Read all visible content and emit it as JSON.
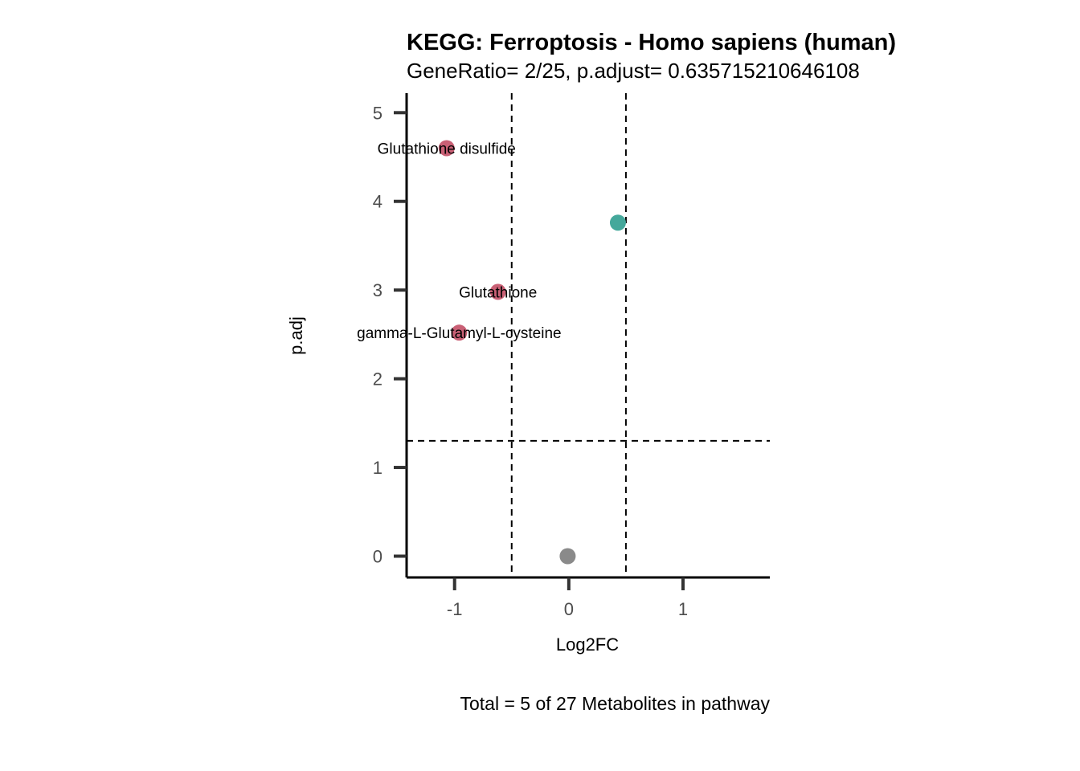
{
  "chart_data": {
    "type": "scatter",
    "title": "KEGG: Ferroptosis - Homo sapiens (human)",
    "subtitle": "GeneRatio= 2/25, p.adjust= 0.635715210646108",
    "xlabel": "Log2FC",
    "ylabel": "p.adj",
    "caption": "Total = 5 of 27 Metabolites in pathway",
    "xlim": [
      -1.42,
      1.76
    ],
    "ylim": [
      -0.24,
      5.22
    ],
    "x_ticks": [
      -1,
      0,
      1
    ],
    "x_tick_labels": [
      "-1",
      "0",
      "1"
    ],
    "y_ticks": [
      0,
      1,
      2,
      3,
      4,
      5
    ],
    "y_tick_labels": [
      "0",
      "1",
      "2",
      "3",
      "4",
      "5"
    ],
    "vlines": [
      -0.5,
      0.5
    ],
    "hline": 1.3,
    "grid": false,
    "points": [
      {
        "x": -1.07,
        "y": 4.6,
        "color": "#c96075",
        "label": "Glutathione disulfide"
      },
      {
        "x": 0.43,
        "y": 3.76,
        "color": "#44a89b",
        "label": ""
      },
      {
        "x": -0.62,
        "y": 2.98,
        "color": "#c96075",
        "label": "Glutathione"
      },
      {
        "x": -0.96,
        "y": 2.52,
        "color": "#c96075",
        "label": "gamma-L-Glutamyl-L-cysteine"
      },
      {
        "x": -0.01,
        "y": 0.0,
        "color": "#8a8a8a",
        "label": ""
      }
    ]
  }
}
